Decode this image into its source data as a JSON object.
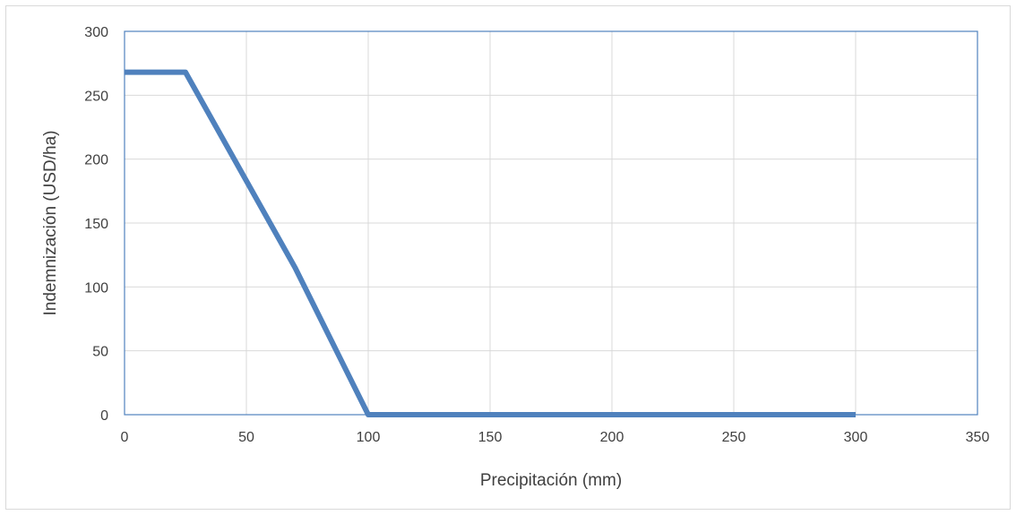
{
  "chart_data": {
    "type": "line",
    "title": "",
    "xlabel": "Precipitación (mm)",
    "ylabel": "Indemnización (USD/ha)",
    "xlim": [
      0,
      350
    ],
    "ylim": [
      0,
      300
    ],
    "x_ticks": [
      0,
      50,
      100,
      150,
      200,
      250,
      300,
      350
    ],
    "y_ticks": [
      0,
      50,
      100,
      150,
      200,
      250,
      300
    ],
    "grid": true,
    "legend": "none",
    "series": [
      {
        "color": "#4f81bd",
        "points": [
          [
            0,
            268
          ],
          [
            25,
            268
          ],
          [
            70,
            115
          ],
          [
            100,
            0
          ],
          [
            300,
            0
          ]
        ]
      }
    ]
  },
  "style": {
    "grid_color": "#d9d9d9",
    "plot_border_color": "#4f81bd",
    "text_color": "#404040"
  }
}
